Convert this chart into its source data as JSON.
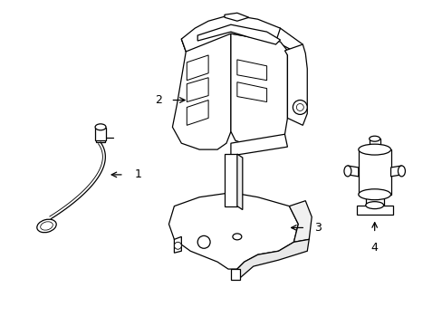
{
  "background_color": "#ffffff",
  "line_color": "#000000",
  "line_width": 0.9,
  "label_fontsize": 9,
  "figsize": [
    4.89,
    3.6
  ],
  "dpi": 100
}
